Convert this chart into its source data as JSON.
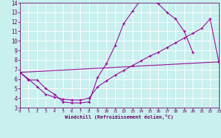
{
  "xlabel": "Windchill (Refroidissement éolien,°C)",
  "bg_color": "#c8f0ee",
  "line_color": "#990099",
  "grid_color": "#ffffff",
  "xlim": [
    0,
    23
  ],
  "ylim": [
    3,
    14
  ],
  "xticks": [
    0,
    1,
    2,
    3,
    4,
    5,
    6,
    7,
    8,
    9,
    10,
    11,
    12,
    13,
    14,
    15,
    16,
    17,
    18,
    19,
    20,
    21,
    22,
    23
  ],
  "yticks": [
    3,
    4,
    5,
    6,
    7,
    8,
    9,
    10,
    11,
    12,
    13,
    14
  ],
  "line1_x": [
    0,
    1,
    2,
    3,
    4,
    5,
    6,
    7,
    8,
    9,
    10,
    11,
    12,
    13,
    14,
    15,
    16,
    17,
    18,
    19,
    20
  ],
  "line1_y": [
    6.7,
    5.9,
    5.9,
    5.0,
    4.4,
    3.6,
    3.5,
    3.5,
    3.6,
    6.2,
    7.6,
    9.5,
    11.8,
    13.1,
    14.3,
    14.5,
    13.9,
    13.0,
    12.3,
    11.0,
    8.8
  ],
  "line2_x": [
    0,
    23
  ],
  "line2_y": [
    6.7,
    7.8
  ],
  "line3_x": [
    0,
    1,
    2,
    3,
    4,
    5,
    6,
    7,
    8,
    9,
    10,
    11,
    12,
    13,
    14,
    15,
    16,
    17,
    18,
    19,
    20,
    21,
    22,
    23
  ],
  "line3_y": [
    6.7,
    6.0,
    5.2,
    4.4,
    4.1,
    3.9,
    3.8,
    3.8,
    4.0,
    5.2,
    5.8,
    6.4,
    6.9,
    7.4,
    7.9,
    8.4,
    8.8,
    9.3,
    9.8,
    10.3,
    10.8,
    11.3,
    12.3,
    7.8
  ]
}
